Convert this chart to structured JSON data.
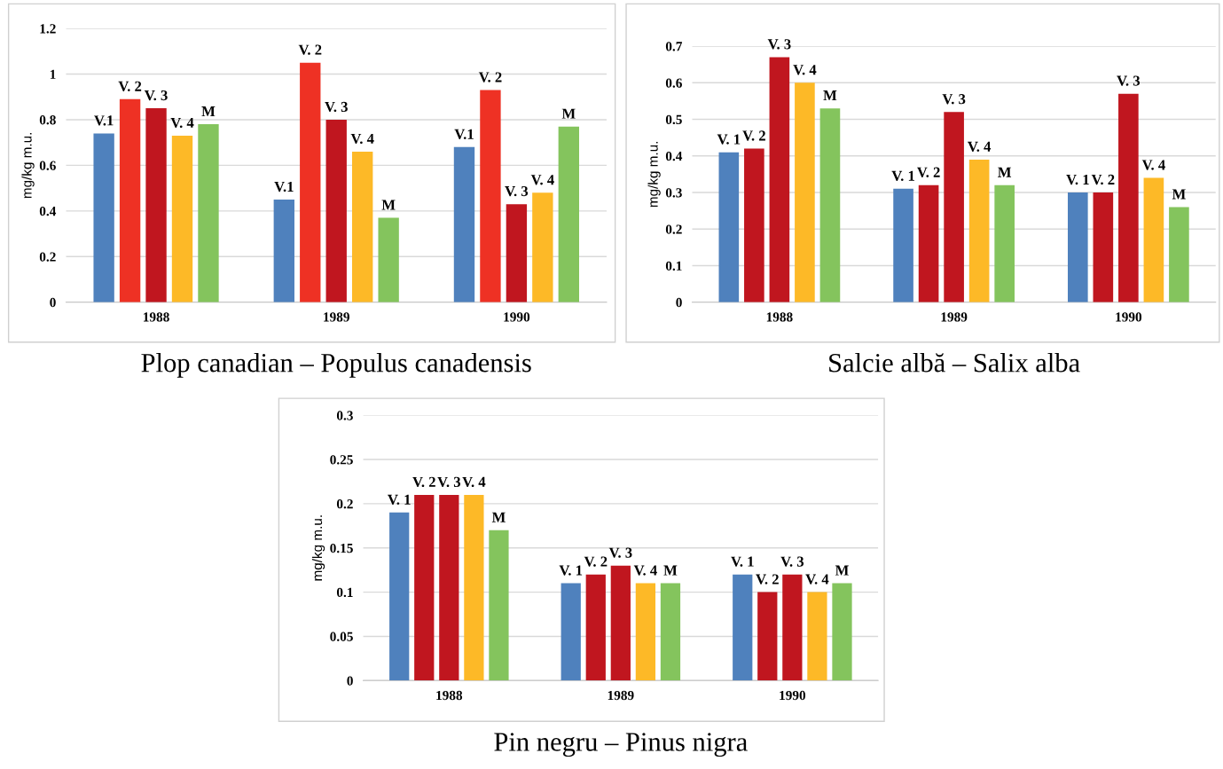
{
  "chart_data": [
    {
      "type": "bar",
      "title": "Plop canadian – Populus canadensis",
      "ylabel": "mg/kg m.u.",
      "categories": [
        "1988",
        "1989",
        "1990"
      ],
      "ylim": [
        0,
        1.2
      ],
      "yticks": [
        0,
        0.2,
        0.4,
        0.6,
        0.8,
        1,
        1.2
      ],
      "grid": "y",
      "legend": false,
      "series": [
        {
          "name": "V.1",
          "color": "#4f81bd",
          "values": [
            0.74,
            0.45,
            0.68
          ]
        },
        {
          "name": "V. 2",
          "color": "#ee3124",
          "values": [
            0.89,
            1.05,
            0.93
          ]
        },
        {
          "name": "V. 3",
          "color": "#c0161f",
          "values": [
            0.85,
            0.8,
            0.43
          ]
        },
        {
          "name": "V. 4",
          "color": "#fdb927",
          "values": [
            0.73,
            0.66,
            0.48
          ]
        },
        {
          "name": "M",
          "color": "#84c45d",
          "values": [
            0.78,
            0.37,
            0.77
          ]
        }
      ]
    },
    {
      "type": "bar",
      "title": "Salcie albă – Salix alba",
      "ylabel": "mg/kg m.u.",
      "categories": [
        "1988",
        "1989",
        "1990"
      ],
      "ylim": [
        0,
        0.7
      ],
      "yticks": [
        0,
        0.1,
        0.2,
        0.3,
        0.4,
        0.5,
        0.6,
        0.7
      ],
      "grid": "y",
      "legend": false,
      "series": [
        {
          "name": "V. 1",
          "color": "#4f81bd",
          "values": [
            0.41,
            0.31,
            0.3
          ]
        },
        {
          "name": "V. 2",
          "color": "#c0161f",
          "values": [
            0.42,
            0.32,
            0.3
          ]
        },
        {
          "name": "V. 3",
          "color": "#c0161f",
          "values": [
            0.67,
            0.52,
            0.57
          ]
        },
        {
          "name": "V. 4",
          "color": "#fdb927",
          "values": [
            0.6,
            0.39,
            0.34
          ]
        },
        {
          "name": "M",
          "color": "#84c45d",
          "values": [
            0.53,
            0.32,
            0.26
          ]
        }
      ]
    },
    {
      "type": "bar",
      "title": "Pin negru – Pinus nigra",
      "ylabel": "mg/kg m.u.",
      "categories": [
        "1988",
        "1989",
        "1990"
      ],
      "ylim": [
        0,
        0.3
      ],
      "yticks": [
        0,
        0.05,
        0.1,
        0.15,
        0.2,
        0.25,
        0.3
      ],
      "grid": "y",
      "legend": false,
      "series": [
        {
          "name": "V. 1",
          "color": "#4f81bd",
          "values": [
            0.19,
            0.11,
            0.12
          ]
        },
        {
          "name": "V. 2",
          "color": "#c0161f",
          "values": [
            0.21,
            0.12,
            0.1
          ]
        },
        {
          "name": "V. 3",
          "color": "#c0161f",
          "values": [
            0.21,
            0.13,
            0.12
          ]
        },
        {
          "name": "V. 4",
          "color": "#fdb927",
          "values": [
            0.21,
            0.11,
            0.1
          ]
        },
        {
          "name": "M",
          "color": "#84c45d",
          "values": [
            0.17,
            0.11,
            0.11
          ]
        }
      ]
    }
  ]
}
